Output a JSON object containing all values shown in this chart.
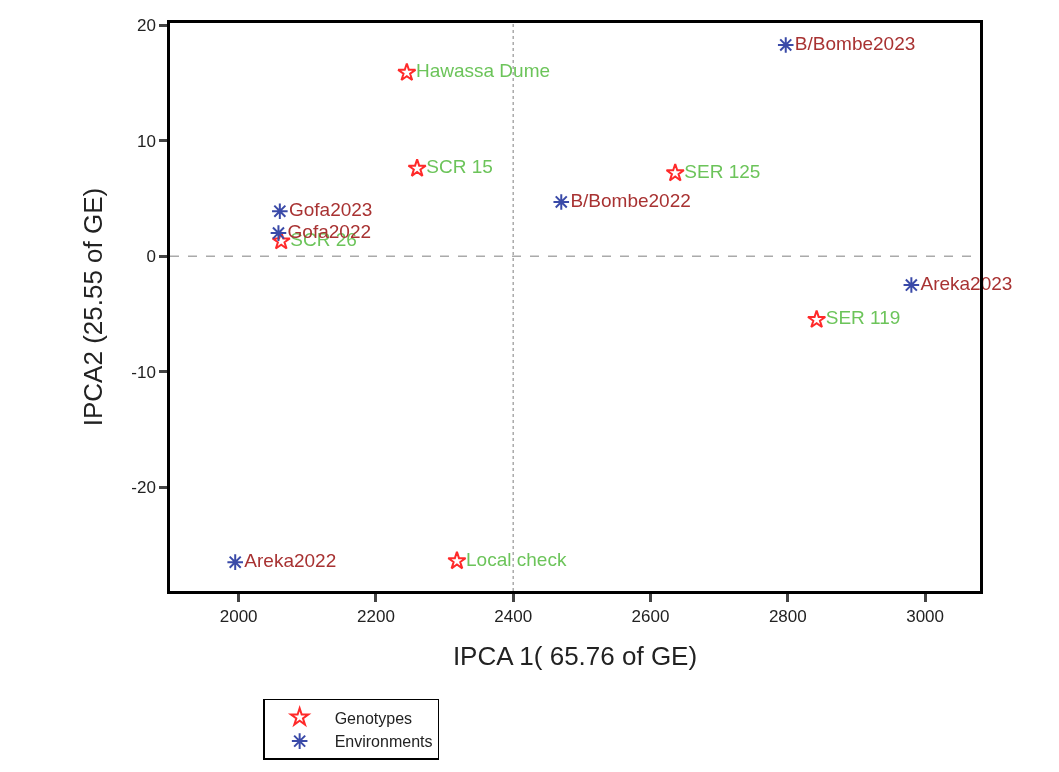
{
  "chart_data": {
    "type": "scatter",
    "xlabel": "IPCA 1( 65.76 of GE)",
    "ylabel": "IPCA2 (25.55 of GE)",
    "series": [
      {
        "name": "Genotypes",
        "color": "#ff2a2a",
        "marker": "star",
        "x": [
          2245,
          2260,
          2636,
          2062,
          2842,
          2318
        ],
        "values": [
          15.9,
          7.6,
          7.2,
          1.3,
          -5.5,
          -26.4
        ],
        "value_labels": [
          "Hawassa Dume",
          "SCR 15",
          "SER 125",
          "SCR 26",
          "SER 119",
          "Local check"
        ]
      },
      {
        "name": "Environments",
        "color": "#3a4aa8",
        "marker": "cross",
        "x": [
          2797,
          2470,
          2060,
          2058,
          2980,
          1995
        ],
        "values": [
          18.3,
          4.7,
          3.9,
          2.0,
          -2.5,
          -26.5
        ],
        "value_labels": [
          "B/Bombe2023",
          "B/Bombe2022",
          "Gofa2023",
          "Gofa2022",
          "Areka2023",
          "Areka2022"
        ]
      }
    ],
    "xlim": [
      1900,
      3080
    ],
    "xticks": [
      2000,
      2200,
      2400,
      2600,
      2800,
      3000
    ],
    "ylim": [
      -29,
      20.2
    ],
    "yticks": [
      -20,
      -10,
      0,
      10,
      20
    ],
    "ref_lines": [
      {
        "axis": "x",
        "value": 2400,
        "color": "#aaaaaa",
        "line_style": "dotted"
      },
      {
        "axis": "y",
        "value": 0,
        "color": "#aaaaaa",
        "line_style": "dashed"
      }
    ],
    "grid": false,
    "legend": "bottom"
  }
}
